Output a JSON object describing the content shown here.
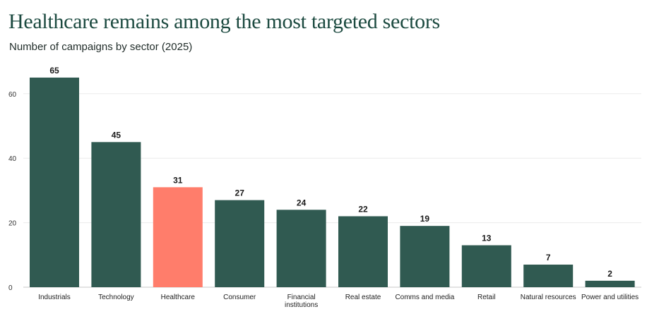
{
  "title": "Healthcare remains among the most targeted sectors",
  "subtitle": "Number of campaigns by sector (2025)",
  "colors": {
    "default_bar": "#305a51",
    "highlight_bar": "#ff7d6b",
    "label_text": "#1a1a1a"
  },
  "chart_data": {
    "type": "bar",
    "title": "Healthcare remains among the most targeted sectors",
    "subtitle": "Number of campaigns by sector (2025)",
    "categories": [
      [
        "Industrials"
      ],
      [
        "Technology"
      ],
      [
        "Healthcare"
      ],
      [
        "Consumer"
      ],
      [
        "Financial",
        "institutions"
      ],
      [
        "Real estate"
      ],
      [
        "Comms and media"
      ],
      [
        "Retail"
      ],
      [
        "Natural resources"
      ],
      [
        "Power and utilities"
      ]
    ],
    "values": [
      65,
      45,
      31,
      27,
      24,
      22,
      19,
      13,
      7,
      2
    ],
    "highlight_index": 2,
    "y_ticks": [
      0,
      20,
      40,
      60
    ],
    "ylim": [
      0,
      65
    ],
    "xlabel": "",
    "ylabel": "",
    "grid": true,
    "data_labels": true
  }
}
